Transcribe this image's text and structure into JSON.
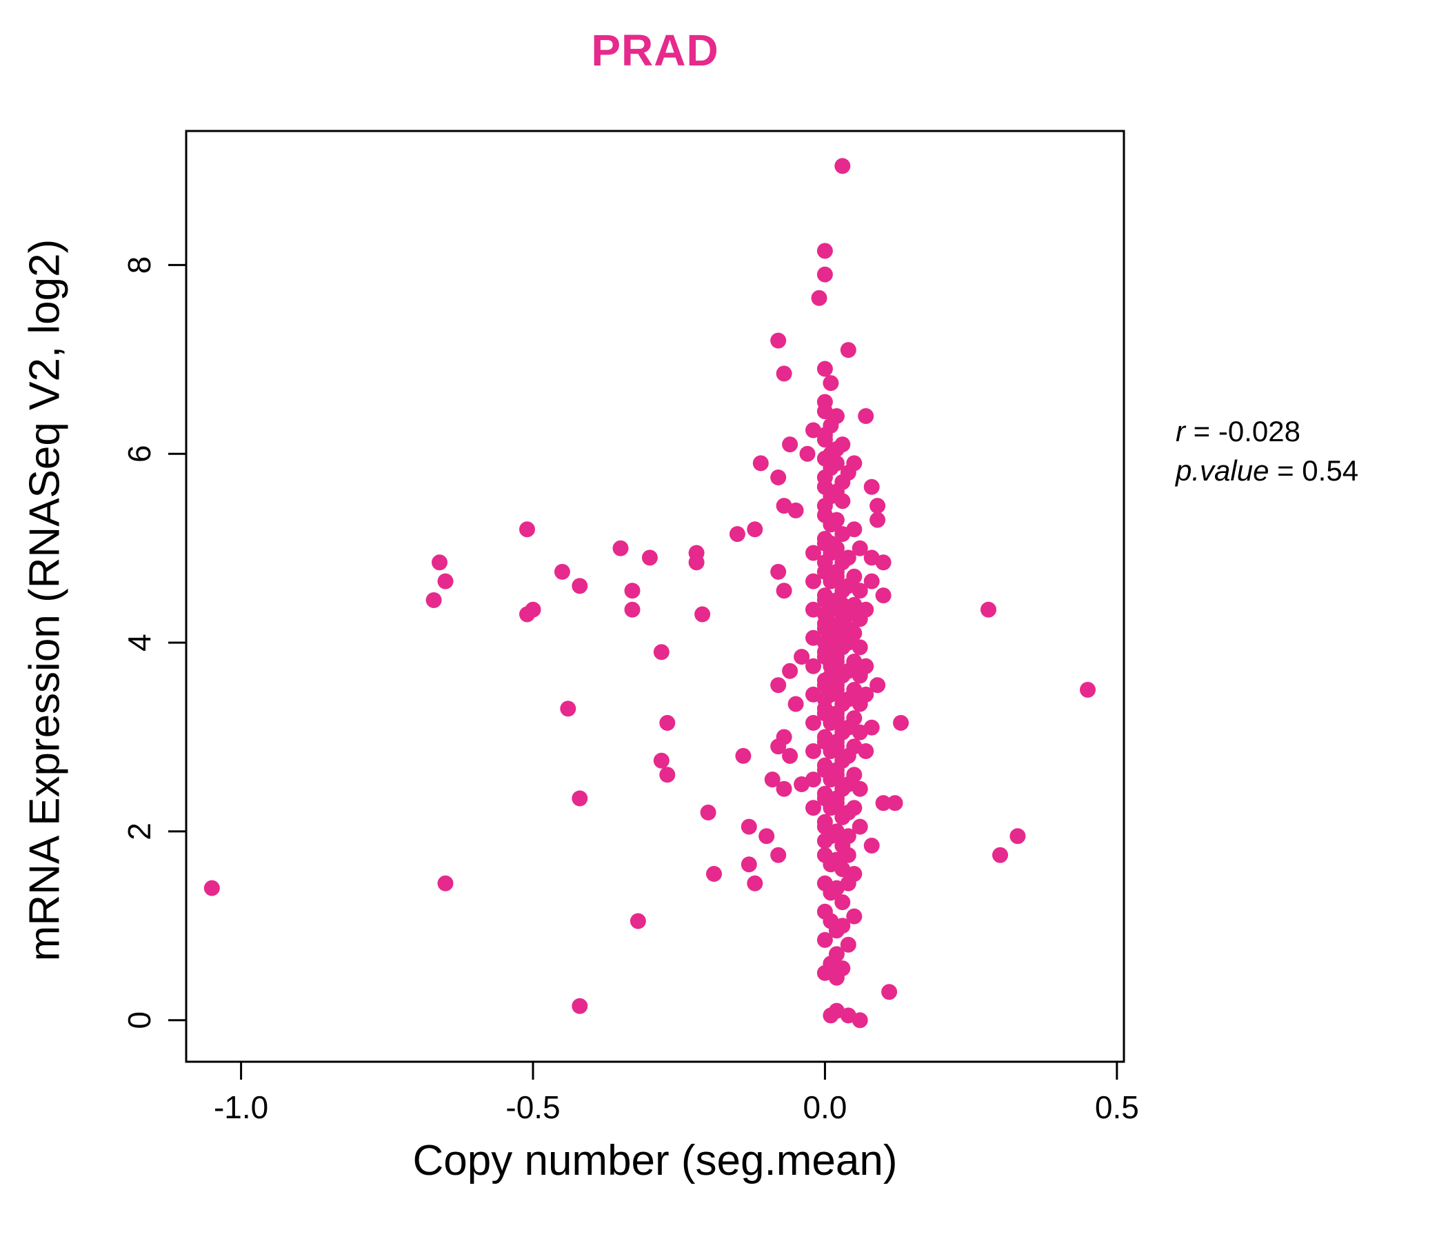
{
  "title": "PRAD",
  "annotation": {
    "r_label": "r",
    "r_value": " = -0.028",
    "p_label": "p.value",
    "p_value": " = 0.54"
  },
  "chart_data": {
    "type": "scatter",
    "title": "PRAD",
    "xlabel": "Copy number (seg.mean)",
    "ylabel": "mRNA Expression (RNASeq V2, log2)",
    "xlim": [
      -1.094,
      0.512
    ],
    "ylim": [
      -0.44,
      9.42
    ],
    "x_ticks": [
      -1.0,
      -0.5,
      0.0,
      0.5
    ],
    "x_tick_labels": [
      "-1.0",
      "-0.5",
      "0.0",
      "0.5"
    ],
    "y_ticks": [
      0,
      2,
      4,
      6,
      8
    ],
    "y_tick_labels": [
      "0",
      "2",
      "4",
      "6",
      "8"
    ],
    "point_color": "#E6298C",
    "title_color": "#E6298C",
    "grid": false,
    "legend": "none",
    "stats": {
      "r": -0.028,
      "p_value": 0.54
    },
    "points": [
      [
        0.03,
        9.05
      ],
      [
        0.0,
        8.15
      ],
      [
        0.0,
        7.9
      ],
      [
        -0.01,
        7.65
      ],
      [
        -0.08,
        7.2
      ],
      [
        0.04,
        7.1
      ],
      [
        -0.07,
        6.85
      ],
      [
        0.0,
        6.9
      ],
      [
        0.01,
        6.75
      ],
      [
        0.0,
        6.55
      ],
      [
        0.0,
        6.45
      ],
      [
        0.02,
        6.4
      ],
      [
        0.07,
        6.4
      ],
      [
        0.01,
        6.3
      ],
      [
        0.0,
        6.2
      ],
      [
        -0.02,
        6.25
      ],
      [
        -0.06,
        6.1
      ],
      [
        0.0,
        6.15
      ],
      [
        0.02,
        6.05
      ],
      [
        0.03,
        6.1
      ],
      [
        -0.03,
        6.0
      ],
      [
        0.01,
        6.0
      ],
      [
        -0.11,
        5.9
      ],
      [
        0.0,
        5.95
      ],
      [
        0.01,
        5.85
      ],
      [
        0.02,
        5.9
      ],
      [
        0.04,
        5.8
      ],
      [
        0.0,
        5.75
      ],
      [
        -0.08,
        5.75
      ],
      [
        0.03,
        5.7
      ],
      [
        0.05,
        5.9
      ],
      [
        0.0,
        5.65
      ],
      [
        0.01,
        5.55
      ],
      [
        0.02,
        5.6
      ],
      [
        -0.07,
        5.45
      ],
      [
        0.0,
        5.45
      ],
      [
        0.03,
        5.5
      ],
      [
        0.08,
        5.65
      ],
      [
        0.09,
        5.45
      ],
      [
        -0.05,
        5.4
      ],
      [
        0.0,
        5.35
      ],
      [
        0.01,
        5.25
      ],
      [
        0.02,
        5.3
      ],
      [
        0.03,
        5.15
      ],
      [
        -0.15,
        5.15
      ],
      [
        -0.12,
        5.2
      ],
      [
        0.0,
        5.1
      ],
      [
        0.05,
        5.2
      ],
      [
        0.09,
        5.3
      ],
      [
        0.0,
        5.05
      ],
      [
        0.01,
        4.95
      ],
      [
        0.02,
        5.0
      ],
      [
        0.03,
        4.85
      ],
      [
        0.04,
        4.9
      ],
      [
        -0.02,
        4.95
      ],
      [
        0.0,
        4.85
      ],
      [
        0.06,
        5.0
      ],
      [
        0.08,
        4.9
      ],
      [
        0.1,
        4.85
      ],
      [
        0.01,
        5.05
      ],
      [
        0.0,
        4.75
      ],
      [
        0.01,
        4.65
      ],
      [
        0.02,
        4.7
      ],
      [
        0.03,
        4.55
      ],
      [
        0.04,
        4.6
      ],
      [
        -0.02,
        4.65
      ],
      [
        -0.07,
        4.55
      ],
      [
        -0.08,
        4.75
      ],
      [
        0.0,
        4.5
      ],
      [
        0.05,
        4.7
      ],
      [
        0.06,
        4.55
      ],
      [
        0.02,
        4.75
      ],
      [
        0.08,
        4.65
      ],
      [
        0.1,
        4.5
      ],
      [
        0.0,
        4.45
      ],
      [
        0.01,
        4.35
      ],
      [
        0.02,
        4.4
      ],
      [
        0.03,
        4.25
      ],
      [
        0.04,
        4.3
      ],
      [
        -0.02,
        4.35
      ],
      [
        0.0,
        4.2
      ],
      [
        0.05,
        4.4
      ],
      [
        0.06,
        4.25
      ],
      [
        0.02,
        4.45
      ],
      [
        0.07,
        4.35
      ],
      [
        0.0,
        4.3
      ],
      [
        0.01,
        4.2
      ],
      [
        0.03,
        4.4
      ],
      [
        0.0,
        4.15
      ],
      [
        0.01,
        4.05
      ],
      [
        0.02,
        4.1
      ],
      [
        0.03,
        3.95
      ],
      [
        0.04,
        4.0
      ],
      [
        -0.02,
        4.05
      ],
      [
        0.0,
        3.9
      ],
      [
        0.05,
        4.1
      ],
      [
        0.06,
        3.95
      ],
      [
        0.02,
        4.15
      ],
      [
        0.01,
        3.95
      ],
      [
        0.03,
        4.05
      ],
      [
        0.0,
        4.0
      ],
      [
        0.04,
        4.15
      ],
      [
        0.0,
        3.85
      ],
      [
        0.01,
        3.75
      ],
      [
        0.02,
        3.8
      ],
      [
        0.03,
        3.65
      ],
      [
        0.04,
        3.7
      ],
      [
        -0.02,
        3.75
      ],
      [
        -0.04,
        3.85
      ],
      [
        0.0,
        3.6
      ],
      [
        0.05,
        3.8
      ],
      [
        0.06,
        3.65
      ],
      [
        0.02,
        3.85
      ],
      [
        -0.06,
        3.7
      ],
      [
        0.01,
        3.65
      ],
      [
        0.07,
        3.75
      ],
      [
        0.0,
        3.55
      ],
      [
        0.01,
        3.45
      ],
      [
        0.02,
        3.5
      ],
      [
        0.03,
        3.35
      ],
      [
        0.04,
        3.4
      ],
      [
        -0.02,
        3.45
      ],
      [
        -0.08,
        3.55
      ],
      [
        0.0,
        3.3
      ],
      [
        0.05,
        3.5
      ],
      [
        0.06,
        3.35
      ],
      [
        0.02,
        3.55
      ],
      [
        -0.05,
        3.35
      ],
      [
        0.07,
        3.45
      ],
      [
        0.09,
        3.55
      ],
      [
        0.0,
        3.4
      ],
      [
        0.0,
        3.25
      ],
      [
        0.01,
        3.15
      ],
      [
        0.02,
        3.2
      ],
      [
        0.03,
        3.05
      ],
      [
        0.04,
        3.1
      ],
      [
        -0.02,
        3.15
      ],
      [
        0.0,
        3.0
      ],
      [
        0.05,
        3.2
      ],
      [
        0.02,
        3.25
      ],
      [
        -0.07,
        3.0
      ],
      [
        0.06,
        3.05
      ],
      [
        0.08,
        3.1
      ],
      [
        0.0,
        2.95
      ],
      [
        0.01,
        2.85
      ],
      [
        0.02,
        2.9
      ],
      [
        0.03,
        2.75
      ],
      [
        0.04,
        2.8
      ],
      [
        -0.02,
        2.85
      ],
      [
        -0.08,
        2.9
      ],
      [
        -0.14,
        2.8
      ],
      [
        0.0,
        2.7
      ],
      [
        0.05,
        2.9
      ],
      [
        0.02,
        2.95
      ],
      [
        -0.06,
        2.8
      ],
      [
        0.07,
        2.85
      ],
      [
        0.0,
        2.65
      ],
      [
        0.01,
        2.55
      ],
      [
        0.02,
        2.6
      ],
      [
        0.03,
        2.45
      ],
      [
        0.04,
        2.5
      ],
      [
        -0.02,
        2.55
      ],
      [
        -0.09,
        2.55
      ],
      [
        -0.07,
        2.45
      ],
      [
        0.0,
        2.4
      ],
      [
        0.05,
        2.6
      ],
      [
        0.02,
        2.65
      ],
      [
        -0.04,
        2.5
      ],
      [
        0.06,
        2.45
      ],
      [
        0.0,
        2.35
      ],
      [
        0.01,
        2.25
      ],
      [
        0.02,
        2.3
      ],
      [
        0.03,
        2.15
      ],
      [
        0.04,
        2.2
      ],
      [
        -0.02,
        2.25
      ],
      [
        -0.2,
        2.2
      ],
      [
        0.12,
        2.3
      ],
      [
        0.0,
        2.1
      ],
      [
        0.05,
        2.25
      ],
      [
        0.02,
        2.35
      ],
      [
        0.1,
        2.3
      ],
      [
        0.0,
        2.05
      ],
      [
        0.01,
        1.95
      ],
      [
        0.02,
        2.0
      ],
      [
        0.03,
        1.85
      ],
      [
        -0.1,
        1.95
      ],
      [
        -0.13,
        2.05
      ],
      [
        0.0,
        1.9
      ],
      [
        0.04,
        1.95
      ],
      [
        0.06,
        2.05
      ],
      [
        0.08,
        1.85
      ],
      [
        0.0,
        1.75
      ],
      [
        0.01,
        1.65
      ],
      [
        0.02,
        1.7
      ],
      [
        -0.08,
        1.75
      ],
      [
        -0.13,
        1.65
      ],
      [
        -0.19,
        1.55
      ],
      [
        0.03,
        1.6
      ],
      [
        0.04,
        1.75
      ],
      [
        0.05,
        1.55
      ],
      [
        0.0,
        1.45
      ],
      [
        0.01,
        1.35
      ],
      [
        0.02,
        1.4
      ],
      [
        -0.12,
        1.45
      ],
      [
        0.03,
        1.25
      ],
      [
        0.04,
        1.45
      ],
      [
        0.0,
        1.15
      ],
      [
        0.01,
        1.05
      ],
      [
        0.02,
        0.95
      ],
      [
        0.05,
        1.1
      ],
      [
        0.03,
        1.0
      ],
      [
        0.0,
        0.85
      ],
      [
        0.02,
        0.7
      ],
      [
        0.01,
        0.6
      ],
      [
        0.04,
        0.8
      ],
      [
        0.0,
        0.5
      ],
      [
        0.03,
        0.55
      ],
      [
        0.11,
        0.3
      ],
      [
        0.02,
        0.45
      ],
      [
        0.01,
        0.05
      ],
      [
        0.02,
        0.1
      ],
      [
        0.04,
        0.05
      ],
      [
        0.06,
        0.0
      ],
      [
        -1.05,
        1.4
      ],
      [
        -0.65,
        1.45
      ],
      [
        -0.67,
        4.45
      ],
      [
        -0.66,
        4.85
      ],
      [
        -0.65,
        4.65
      ],
      [
        -0.51,
        5.2
      ],
      [
        -0.5,
        4.35
      ],
      [
        -0.51,
        4.3
      ],
      [
        -0.45,
        4.75
      ],
      [
        -0.42,
        4.6
      ],
      [
        -0.44,
        3.3
      ],
      [
        -0.42,
        2.35
      ],
      [
        -0.42,
        0.15
      ],
      [
        -0.35,
        5.0
      ],
      [
        -0.33,
        4.55
      ],
      [
        -0.33,
        4.35
      ],
      [
        -0.3,
        4.9
      ],
      [
        -0.28,
        3.9
      ],
      [
        -0.27,
        3.15
      ],
      [
        -0.28,
        2.75
      ],
      [
        -0.27,
        2.6
      ],
      [
        -0.32,
        1.05
      ],
      [
        -0.22,
        4.95
      ],
      [
        -0.22,
        4.85
      ],
      [
        -0.21,
        4.3
      ],
      [
        0.13,
        3.15
      ],
      [
        0.28,
        4.35
      ],
      [
        0.3,
        1.75
      ],
      [
        0.33,
        1.95
      ],
      [
        0.45,
        3.5
      ]
    ]
  }
}
